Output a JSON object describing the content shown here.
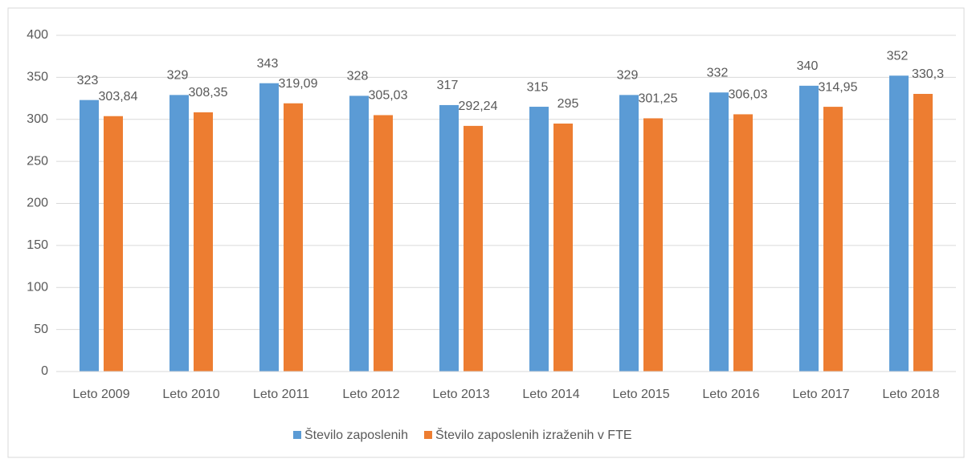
{
  "chart_data": {
    "type": "bar",
    "categories": [
      "Leto 2009",
      "Leto 2010",
      "Leto 2011",
      "Leto 2012",
      "Leto 2013",
      "Leto 2014",
      "Leto 2015",
      "Leto 2016",
      "Leto 2017",
      "Leto 2018"
    ],
    "series": [
      {
        "name": "Število zaposlenih",
        "color": "#5b9bd5",
        "values": [
          323,
          329,
          343,
          328,
          317,
          315,
          329,
          332,
          340,
          352
        ]
      },
      {
        "name": "Število zaposlenih izraženih v FTE",
        "color": "#ed7d31",
        "values": [
          303.84,
          308.35,
          319.09,
          305.03,
          292.24,
          295,
          301.25,
          306.03,
          314.95,
          330.3
        ],
        "value_labels": [
          "303,84",
          "308,35",
          "319,09",
          "305,03",
          "292,24",
          "295",
          "301,25",
          "306,03",
          "314,95",
          "330,3"
        ]
      }
    ],
    "ylim": [
      0,
      400
    ],
    "yticks": [
      0,
      50,
      100,
      150,
      200,
      250,
      300,
      350,
      400
    ],
    "grid": true,
    "legend": "bottom"
  }
}
